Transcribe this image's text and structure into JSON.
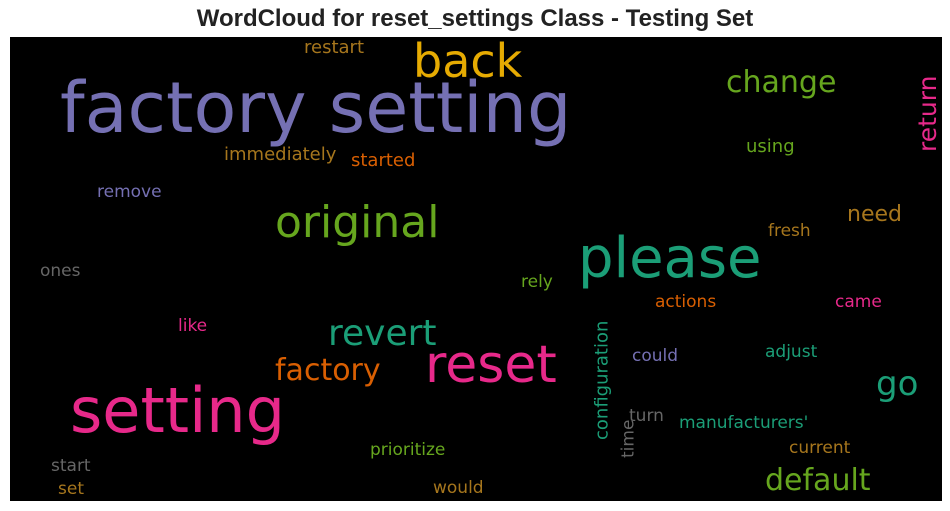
{
  "chart_data": {
    "type": "wordcloud",
    "title": "WordCloud for reset_settings Class - Testing Set",
    "background": "#000000",
    "colors": {
      "purple": "#7570b3",
      "orange": "#d95f02",
      "teal": "#1b9e77",
      "pink": "#e7298a",
      "green": "#66a61e",
      "gold": "#e6ab02",
      "brown": "#a6761d",
      "gray": "#666666"
    },
    "words": [
      {
        "text": "factory setting",
        "color": "#7570b3",
        "orientation": "horizontal"
      },
      {
        "text": "setting",
        "color": "#e7298a",
        "orientation": "horizontal"
      },
      {
        "text": "please",
        "color": "#1b9e77",
        "orientation": "horizontal"
      },
      {
        "text": "reset",
        "color": "#e7298a",
        "orientation": "horizontal"
      },
      {
        "text": "back",
        "color": "#e6ab02",
        "orientation": "horizontal"
      },
      {
        "text": "original",
        "color": "#66a61e",
        "orientation": "horizontal"
      },
      {
        "text": "revert",
        "color": "#1b9e77",
        "orientation": "horizontal"
      },
      {
        "text": "go",
        "color": "#1b9e77",
        "orientation": "horizontal"
      },
      {
        "text": "change",
        "color": "#66a61e",
        "orientation": "horizontal"
      },
      {
        "text": "default",
        "color": "#66a61e",
        "orientation": "horizontal"
      },
      {
        "text": "factory",
        "color": "#d95f02",
        "orientation": "horizontal"
      },
      {
        "text": "return",
        "color": "#e7298a",
        "orientation": "vertical"
      },
      {
        "text": "need",
        "color": "#a6761d",
        "orientation": "horizontal"
      },
      {
        "text": "configuration",
        "color": "#1b9e77",
        "orientation": "vertical"
      },
      {
        "text": "restart",
        "color": "#a6761d",
        "orientation": "horizontal"
      },
      {
        "text": "immediately",
        "color": "#a6761d",
        "orientation": "horizontal"
      },
      {
        "text": "started",
        "color": "#d95f02",
        "orientation": "horizontal"
      },
      {
        "text": "using",
        "color": "#66a61e",
        "orientation": "horizontal"
      },
      {
        "text": "remove",
        "color": "#7570b3",
        "orientation": "horizontal"
      },
      {
        "text": "fresh",
        "color": "#a6761d",
        "orientation": "horizontal"
      },
      {
        "text": "ones",
        "color": "#666666",
        "orientation": "horizontal"
      },
      {
        "text": "rely",
        "color": "#66a61e",
        "orientation": "horizontal"
      },
      {
        "text": "actions",
        "color": "#d95f02",
        "orientation": "horizontal"
      },
      {
        "text": "came",
        "color": "#e7298a",
        "orientation": "horizontal"
      },
      {
        "text": "like",
        "color": "#e7298a",
        "orientation": "horizontal"
      },
      {
        "text": "could",
        "color": "#7570b3",
        "orientation": "horizontal"
      },
      {
        "text": "adjust",
        "color": "#1b9e77",
        "orientation": "horizontal"
      },
      {
        "text": "turn",
        "color": "#666666",
        "orientation": "horizontal"
      },
      {
        "text": "manufacturers'",
        "color": "#1b9e77",
        "orientation": "horizontal"
      },
      {
        "text": "time",
        "color": "#666666",
        "orientation": "vertical"
      },
      {
        "text": "prioritize",
        "color": "#66a61e",
        "orientation": "horizontal"
      },
      {
        "text": "current",
        "color": "#a6761d",
        "orientation": "horizontal"
      },
      {
        "text": "start",
        "color": "#666666",
        "orientation": "horizontal"
      },
      {
        "text": "set",
        "color": "#a6761d",
        "orientation": "horizontal"
      },
      {
        "text": "would",
        "color": "#a6761d",
        "orientation": "horizontal"
      }
    ]
  }
}
